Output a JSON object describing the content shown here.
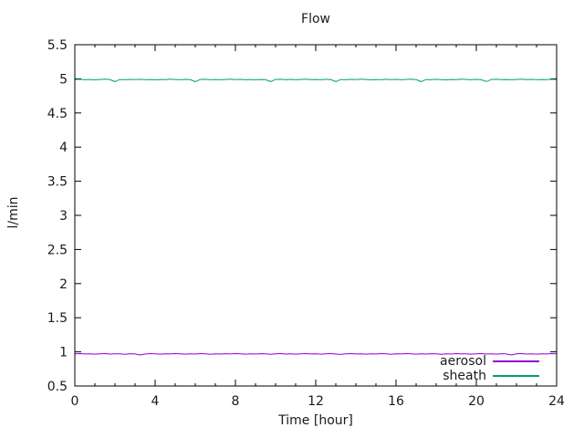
{
  "title": "Flow",
  "axes": {
    "xlabel": "Time [hour]",
    "ylabel": "l/min",
    "x_major_ticks": [
      0,
      4,
      8,
      12,
      16,
      20,
      24
    ],
    "y_major_ticks": [
      0.5,
      1,
      1.5,
      2,
      2.5,
      3,
      3.5,
      4,
      4.5,
      5,
      5.5
    ]
  },
  "legend": [
    {
      "label": "aerosol",
      "color": "#9400d3"
    },
    {
      "label": "sheath",
      "color": "#009e73"
    }
  ],
  "chart_data": {
    "type": "line",
    "title": "Flow",
    "xlabel": "Time [hour]",
    "ylabel": "l/min",
    "xlim": [
      0,
      24
    ],
    "ylim": [
      0.5,
      5.5
    ],
    "x_major_tick_step": 4,
    "x_minor_tick_step": 1,
    "y_major_tick_step": 0.5,
    "grid": false,
    "legend_position": "bottom-right",
    "x_start": 0,
    "x_step": 0.25,
    "series": [
      {
        "name": "aerosol",
        "color": "#9400d3",
        "values": [
          0.97,
          0.974,
          0.969,
          0.972,
          0.966,
          0.971,
          0.975,
          0.968,
          0.972,
          0.97,
          0.965,
          0.973,
          0.969,
          0.955,
          0.968,
          0.974,
          0.97,
          0.966,
          0.972,
          0.969,
          0.975,
          0.971,
          0.967,
          0.972,
          0.968,
          0.974,
          0.97,
          0.965,
          0.971,
          0.968,
          0.973,
          0.969,
          0.975,
          0.97,
          0.966,
          0.972,
          0.968,
          0.973,
          0.97,
          0.964,
          0.971,
          0.975,
          0.968,
          0.972,
          0.966,
          0.97,
          0.974,
          0.969,
          0.972,
          0.967,
          0.971,
          0.975,
          0.968,
          0.963,
          0.97,
          0.974,
          0.969,
          0.972,
          0.966,
          0.971,
          0.968,
          0.974,
          0.97,
          0.965,
          0.972,
          0.969,
          0.975,
          0.97,
          0.966,
          0.971,
          0.968,
          0.973,
          0.97,
          0.964,
          0.972,
          0.968,
          0.974,
          0.969,
          0.972,
          0.966,
          0.97,
          0.975,
          0.968,
          0.971,
          0.967,
          0.973,
          0.969,
          0.955,
          0.97,
          0.974,
          0.968,
          0.972,
          0.966,
          0.971,
          0.969,
          0.974,
          0.97
        ]
      },
      {
        "name": "sheath",
        "color": "#009e73",
        "values": [
          4.99,
          4.993,
          4.987,
          4.991,
          4.985,
          4.99,
          4.994,
          4.988,
          4.96,
          4.99,
          4.986,
          4.992,
          4.989,
          4.993,
          4.987,
          4.99,
          4.985,
          4.991,
          4.988,
          4.994,
          4.99,
          4.986,
          4.992,
          4.988,
          4.96,
          4.99,
          4.993,
          4.987,
          4.991,
          4.986,
          4.99,
          4.994,
          4.989,
          4.992,
          4.987,
          4.99,
          4.985,
          4.991,
          4.988,
          4.96,
          4.99,
          4.993,
          4.987,
          4.992,
          4.986,
          4.99,
          4.994,
          4.988,
          4.991,
          4.987,
          4.993,
          4.989,
          4.96,
          4.99,
          4.986,
          4.992,
          4.988,
          4.994,
          4.99,
          4.985,
          4.991,
          4.987,
          4.993,
          4.989,
          4.992,
          4.986,
          4.99,
          4.994,
          4.988,
          4.96,
          4.991,
          4.987,
          4.993,
          4.989,
          4.985,
          4.991,
          4.988,
          4.994,
          4.99,
          4.986,
          4.992,
          4.987,
          4.96,
          4.99,
          4.993,
          4.988,
          4.991,
          4.986,
          4.99,
          4.994,
          4.989,
          4.992,
          4.987,
          4.991,
          4.988,
          4.993,
          4.99
        ]
      }
    ]
  }
}
